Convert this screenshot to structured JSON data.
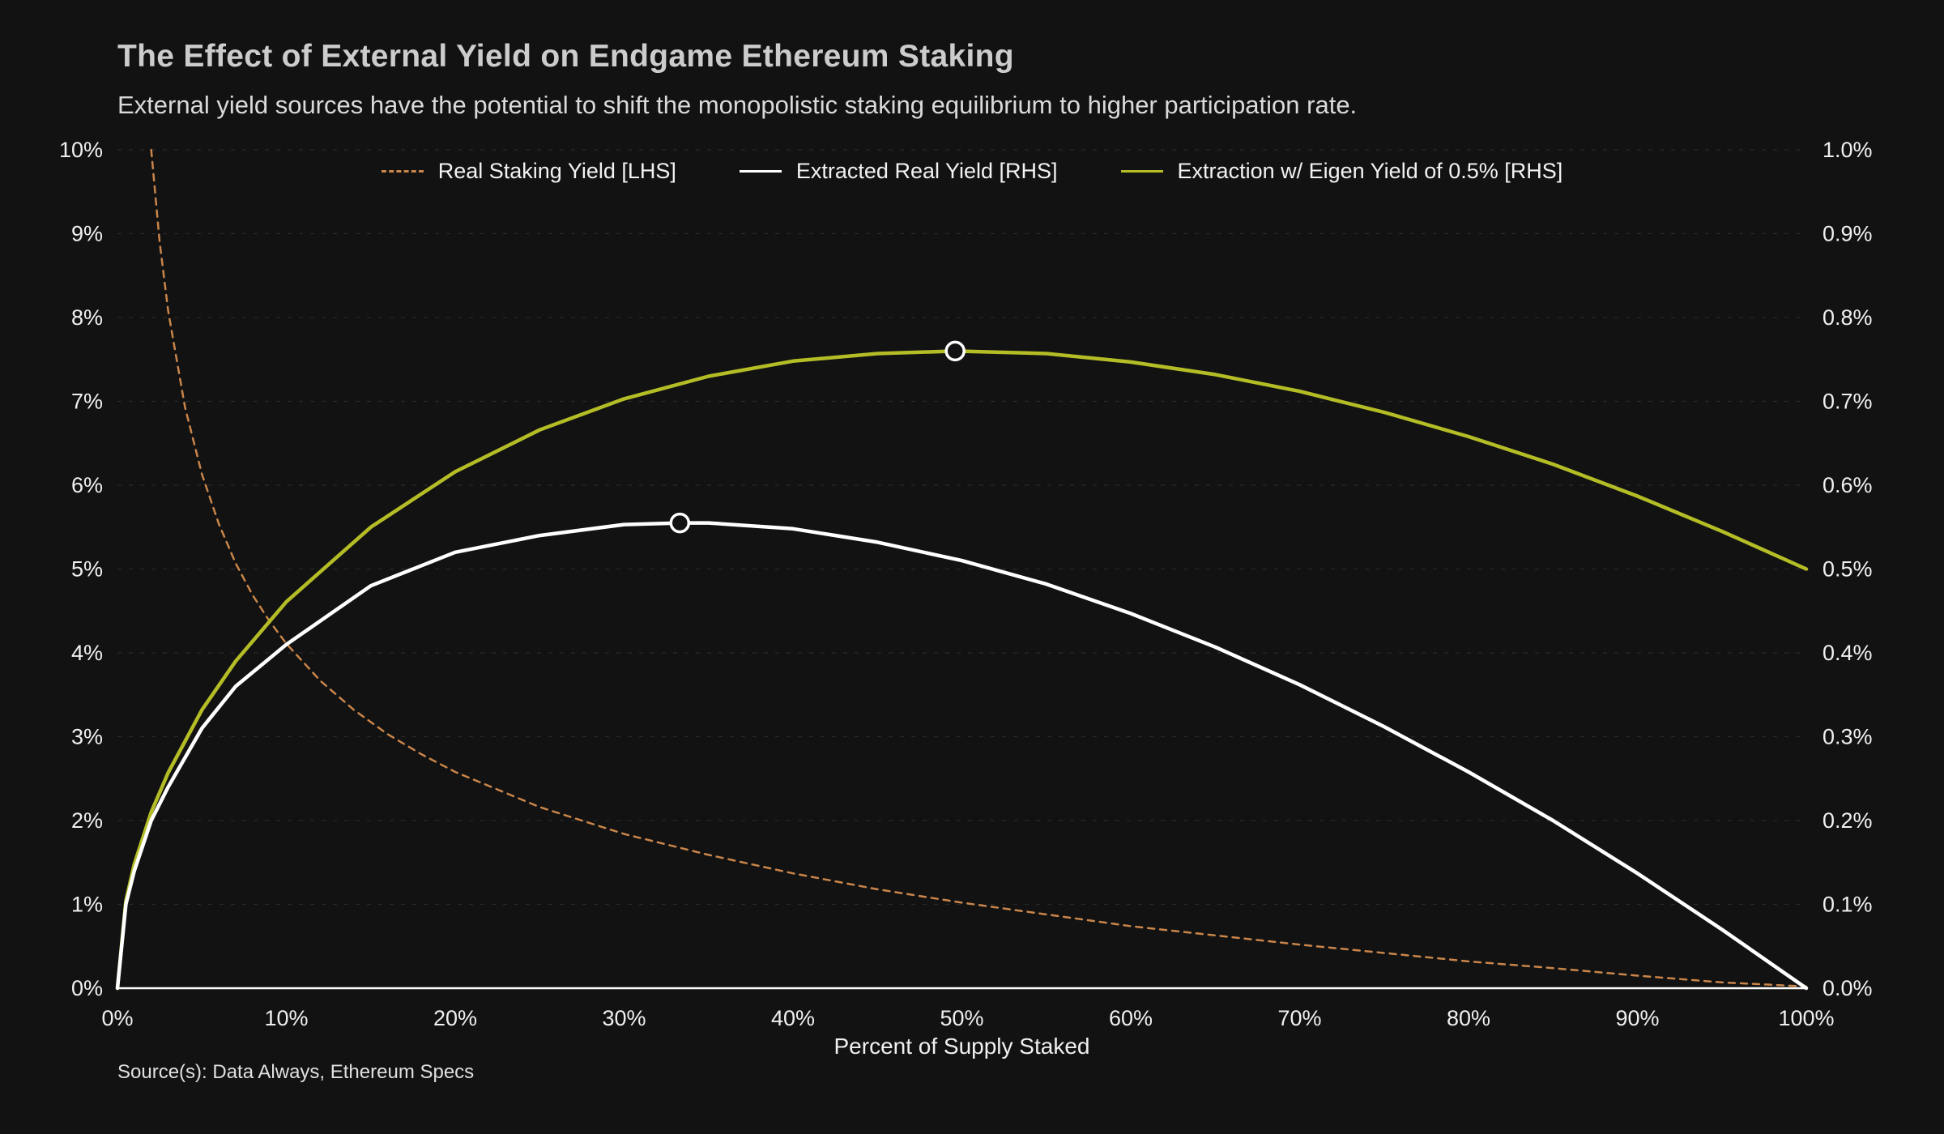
{
  "header": {
    "title": "The Effect of External Yield on Endgame Ethereum Staking",
    "subtitle": "External yield sources have the potential to shift the monopolistic staking equilibrium to higher participation rate."
  },
  "footer": {
    "source": "Source(s): Data Always, Ethereum Specs"
  },
  "chart_data": {
    "type": "line",
    "title": "The Effect of External Yield on Endgame Ethereum Staking",
    "xlabel": "Percent of Supply Staked",
    "background": "#121212",
    "axis_color": "#ffffff",
    "grid": {
      "show": true,
      "color": "#2a2a2a",
      "dashed": true
    },
    "x_axis": {
      "range": [
        0,
        100
      ],
      "tick_values": [
        0,
        10,
        20,
        30,
        40,
        50,
        60,
        70,
        80,
        90,
        100
      ],
      "tick_labels": [
        "0%",
        "10%",
        "20%",
        "30%",
        "40%",
        "50%",
        "60%",
        "70%",
        "80%",
        "90%",
        "100%"
      ]
    },
    "left_axis": {
      "range": [
        0,
        10
      ],
      "tick_values": [
        0,
        1,
        2,
        3,
        4,
        5,
        6,
        7,
        8,
        9,
        10
      ],
      "tick_labels": [
        "0%",
        "1%",
        "2%",
        "3%",
        "4%",
        "5%",
        "6%",
        "7%",
        "8%",
        "9%",
        "10%"
      ]
    },
    "right_axis": {
      "range": [
        0,
        1
      ],
      "tick_values": [
        0,
        0.1,
        0.2,
        0.3,
        0.4,
        0.5,
        0.6,
        0.7,
        0.8,
        0.9,
        1.0
      ],
      "tick_labels": [
        "0.0%",
        "0.1%",
        "0.2%",
        "0.3%",
        "0.4%",
        "0.5%",
        "0.6%",
        "0.7%",
        "0.8%",
        "0.9%",
        "1.0%"
      ]
    },
    "legend": {
      "position": "top-center",
      "items": [
        {
          "label": "Real Staking Yield [LHS]",
          "color": "#c9854a",
          "style": "dashed"
        },
        {
          "label": "Extracted Real Yield [RHS]",
          "color": "#ffffff",
          "style": "solid"
        },
        {
          "label": "Extraction w/ Eigen Yield of 0.5% [RHS]",
          "color": "#b4bd26",
          "style": "solid"
        }
      ]
    },
    "series": [
      {
        "name": "Real Staking Yield [LHS]",
        "axis": "left",
        "color": "#c9854a",
        "dash": "8 7",
        "width": 2.5,
        "x": [
          2,
          2.5,
          3,
          4,
          5,
          6,
          7,
          8,
          9,
          10,
          12,
          14,
          16,
          18,
          20,
          25,
          30,
          35,
          40,
          45,
          50,
          55,
          60,
          65,
          70,
          75,
          80,
          85,
          90,
          95,
          100
        ],
        "y": [
          10,
          8.9,
          8.08,
          6.93,
          6.13,
          5.54,
          5.07,
          4.69,
          4.38,
          4.11,
          3.67,
          3.32,
          3.03,
          2.79,
          2.58,
          2.16,
          1.84,
          1.59,
          1.37,
          1.18,
          1.02,
          0.88,
          0.74,
          0.63,
          0.52,
          0.42,
          0.32,
          0.24,
          0.15,
          0.07,
          0.02
        ]
      },
      {
        "name": "Extraction w/ Eigen Yield of 0.5% [RHS]",
        "axis": "right",
        "color": "#b4bd26",
        "dash": "",
        "width": 4.5,
        "x": [
          0,
          0.5,
          1,
          2,
          3,
          5,
          7,
          10,
          15,
          20,
          25,
          30,
          35,
          40,
          45,
          49.6,
          55,
          60,
          65,
          70,
          75,
          80,
          85,
          90,
          95,
          100
        ],
        "y": [
          0,
          0.104,
          0.148,
          0.21,
          0.257,
          0.332,
          0.39,
          0.461,
          0.55,
          0.616,
          0.666,
          0.703,
          0.73,
          0.748,
          0.757,
          0.76,
          0.757,
          0.747,
          0.732,
          0.712,
          0.687,
          0.658,
          0.625,
          0.587,
          0.545,
          0.5
        ]
      },
      {
        "name": "Extracted Real Yield [RHS]",
        "axis": "right",
        "color": "#ffffff",
        "dash": "",
        "width": 4.5,
        "x": [
          0,
          0.5,
          1,
          2,
          3,
          5,
          7,
          10,
          15,
          20,
          25,
          30,
          33.3,
          35,
          40,
          45,
          50,
          55,
          60,
          65,
          70,
          75,
          80,
          85,
          90,
          95,
          100
        ],
        "y": [
          0,
          0.1,
          0.14,
          0.2,
          0.24,
          0.31,
          0.36,
          0.41,
          0.48,
          0.52,
          0.54,
          0.553,
          0.555,
          0.555,
          0.548,
          0.532,
          0.51,
          0.482,
          0.447,
          0.407,
          0.362,
          0.312,
          0.258,
          0.2,
          0.137,
          0.07,
          0
        ]
      }
    ],
    "markers": [
      {
        "series": "Extracted Real Yield [RHS]",
        "axis": "right",
        "x": 33.3,
        "y": 0.555
      },
      {
        "series": "Extraction w/ Eigen Yield of 0.5% [RHS]",
        "axis": "right",
        "x": 49.6,
        "y": 0.76
      }
    ]
  }
}
